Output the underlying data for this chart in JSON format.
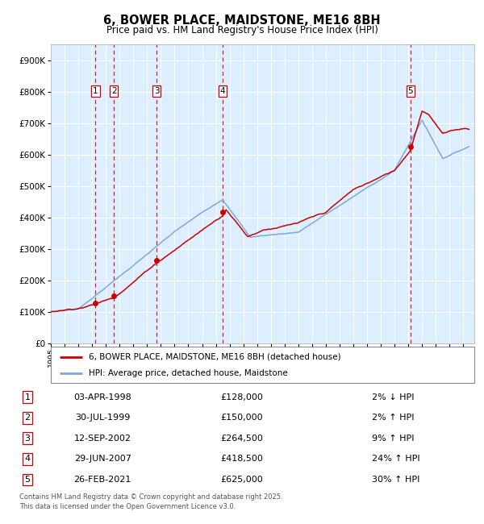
{
  "title": "6, BOWER PLACE, MAIDSTONE, ME16 8BH",
  "subtitle": "Price paid vs. HM Land Registry's House Price Index (HPI)",
  "legend_red": "6, BOWER PLACE, MAIDSTONE, ME16 8BH (detached house)",
  "legend_blue": "HPI: Average price, detached house, Maidstone",
  "footer": "Contains HM Land Registry data © Crown copyright and database right 2025.\nThis data is licensed under the Open Government Licence v3.0.",
  "transactions": [
    {
      "num": 1,
      "date": "03-APR-1998",
      "price": 128000,
      "pct": "2%",
      "dir": "↓",
      "x_year": 1998.25
    },
    {
      "num": 2,
      "date": "30-JUL-1999",
      "price": 150000,
      "pct": "2%",
      "dir": "↑",
      "x_year": 1999.58
    },
    {
      "num": 3,
      "date": "12-SEP-2002",
      "price": 264500,
      "pct": "9%",
      "dir": "↑",
      "x_year": 2002.7
    },
    {
      "num": 4,
      "date": "29-JUN-2007",
      "price": 418500,
      "pct": "24%",
      "dir": "↑",
      "x_year": 2007.49
    },
    {
      "num": 5,
      "date": "26-FEB-2021",
      "price": 625000,
      "pct": "30%",
      "dir": "↑",
      "x_year": 2021.15
    }
  ],
  "red_color": "#cc0000",
  "blue_color": "#7aaadd",
  "dashed_color": "#cc0000",
  "bg_color": "#ddeeff",
  "ylim": [
    0,
    950000
  ],
  "xlim_start": 1995.0,
  "xlim_end": 2025.8,
  "yticks": [
    0,
    100000,
    200000,
    300000,
    400000,
    500000,
    600000,
    700000,
    800000,
    900000
  ],
  "ytick_labels": [
    "£0",
    "£100K",
    "£200K",
    "£300K",
    "£400K",
    "£500K",
    "£600K",
    "£700K",
    "£800K",
    "£900K"
  ]
}
